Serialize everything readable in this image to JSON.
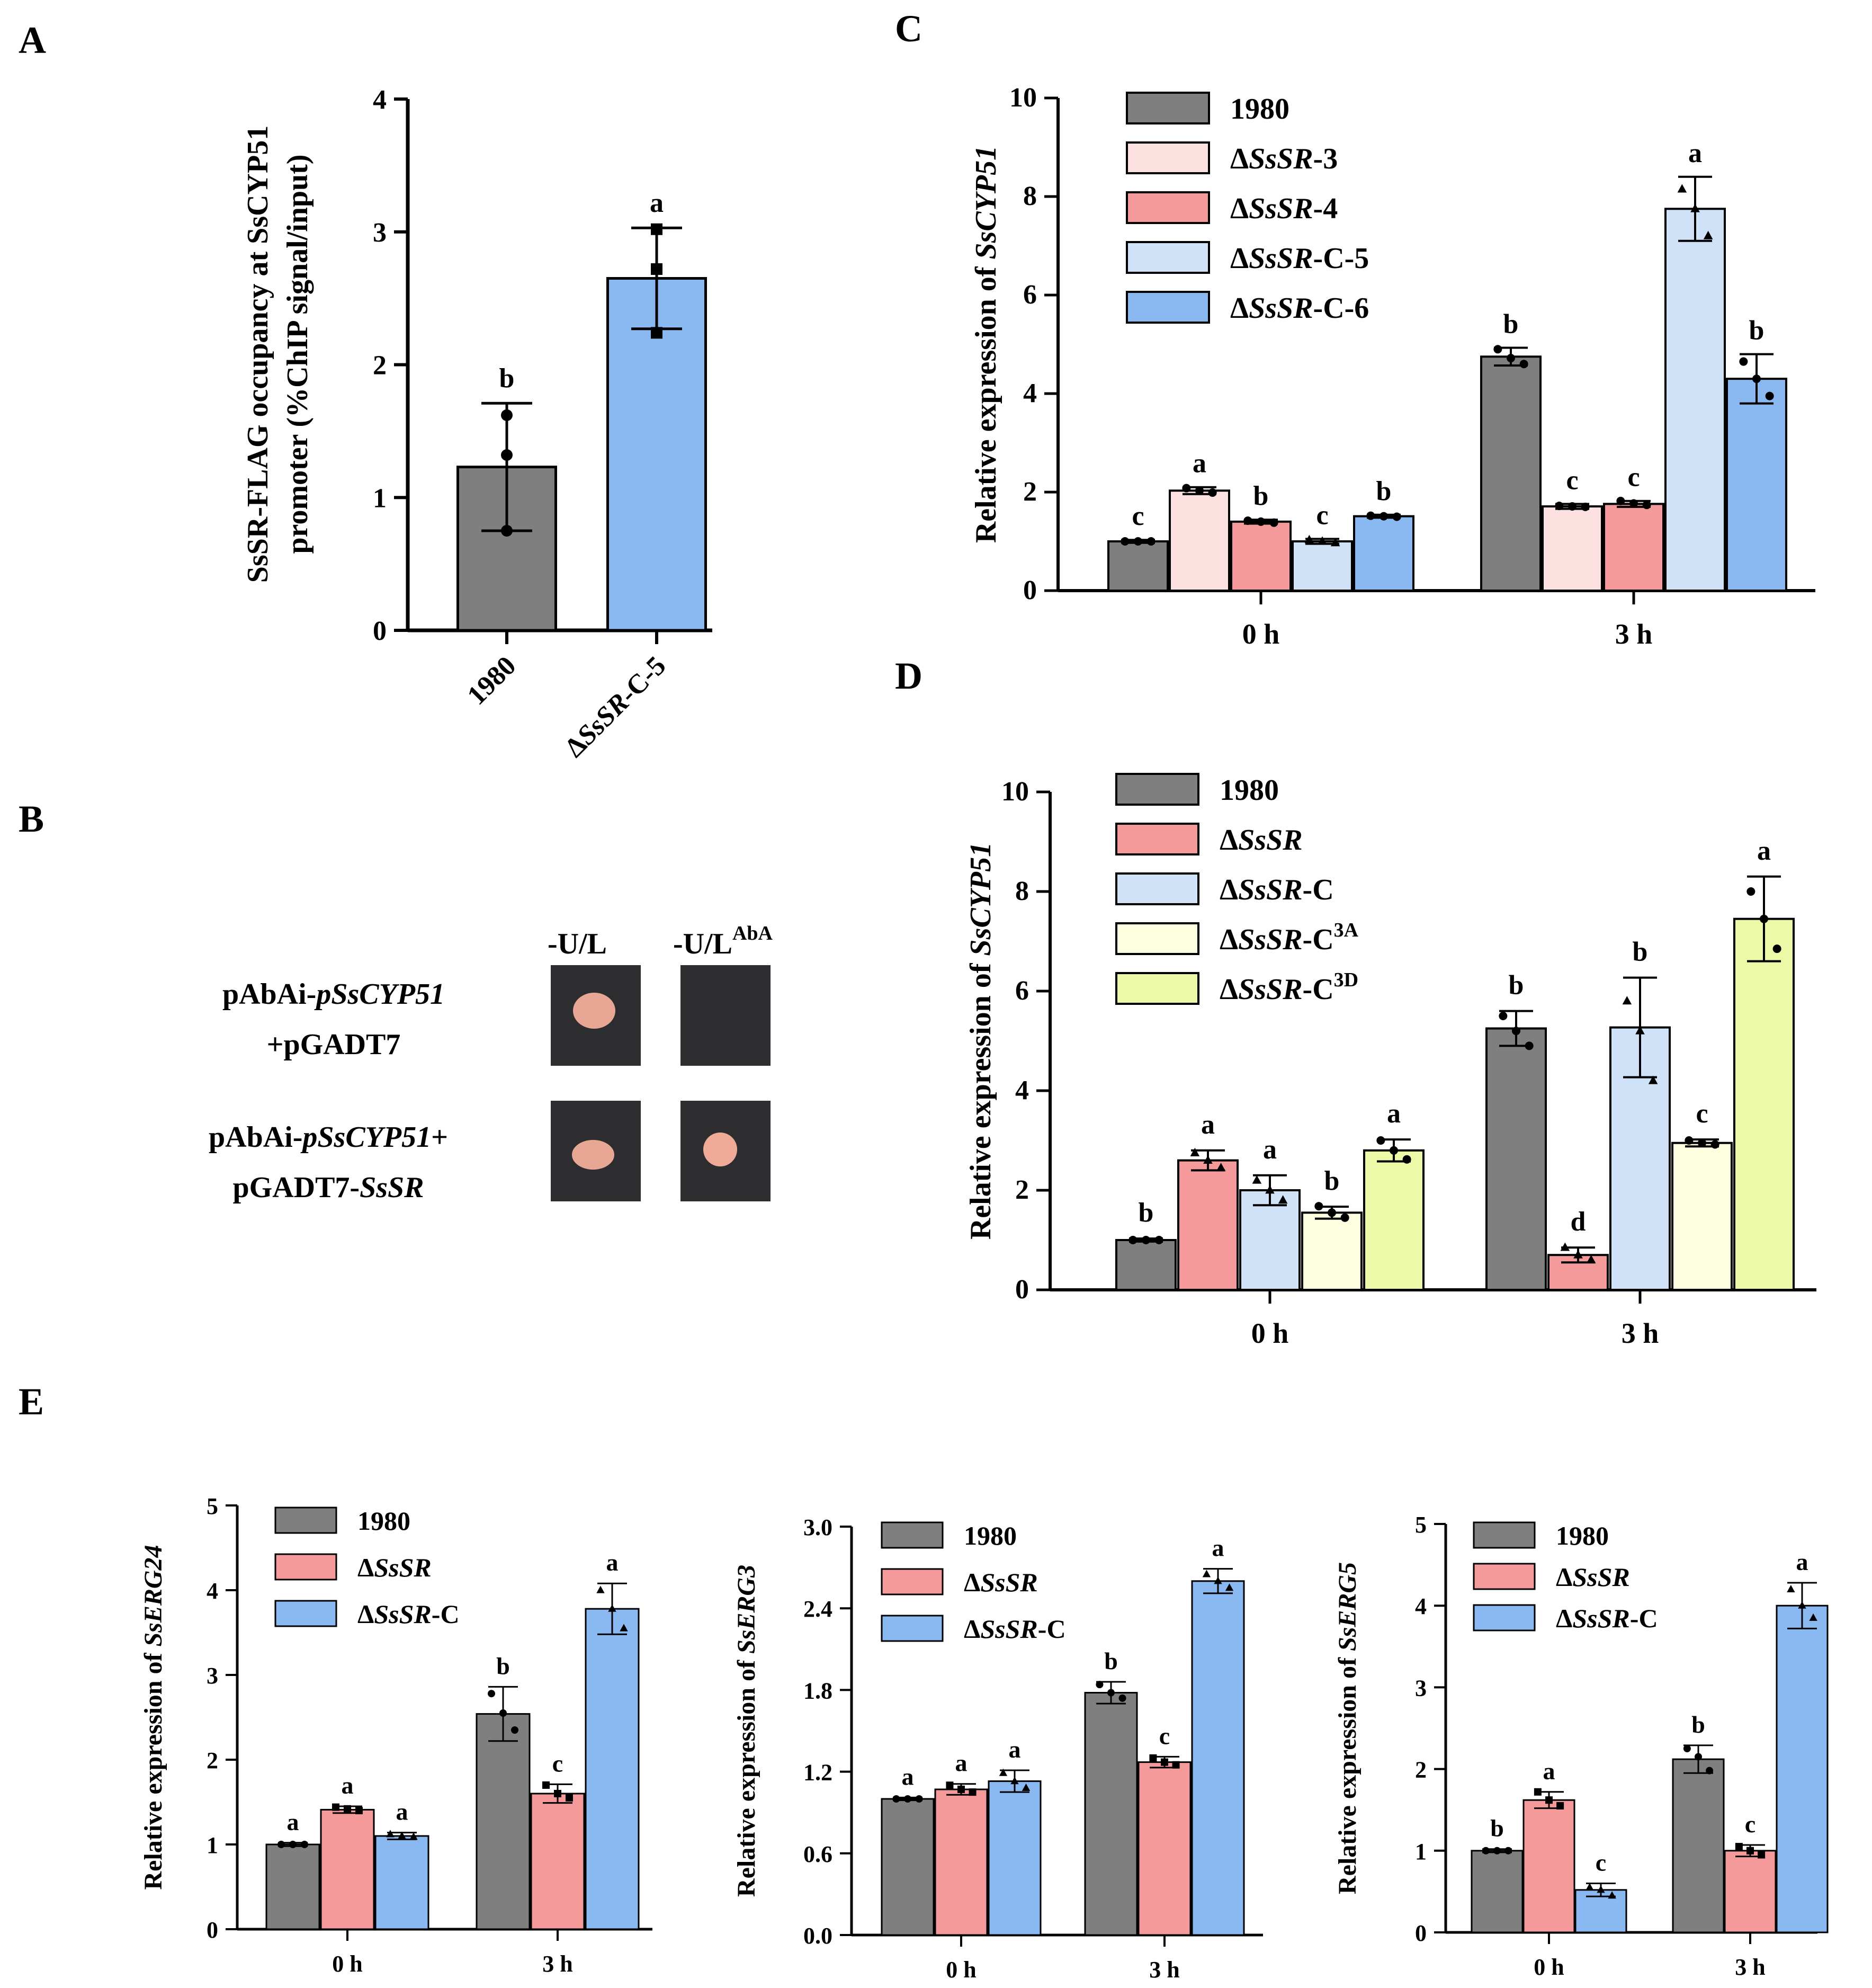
{
  "panels": {
    "A": "A",
    "B": "B",
    "C": "C",
    "D": "D",
    "E": "E"
  },
  "colors": {
    "c1980": "#7f7f7f",
    "cSR3": "#fde0e0",
    "cSR4": "#f49a9a",
    "cC5": "#cfe2f7",
    "cC6": "#8ab9f1",
    "cC3A": "#fdfde0",
    "cC3D": "#ecf9a6",
    "cSR": "#f49a9a",
    "cC": "#8ab9f1"
  },
  "panel_b": {
    "col_headers": [
      "-U/L",
      "-U/L",
      "AbA"
    ],
    "rows": [
      {
        "line1_prefix": "pAbAi-",
        "line1_italic": "pSsCYP51",
        "line1_suffix": "",
        "line2_prefix": "+pGADT7",
        "line2_italic": ""
      },
      {
        "line1_prefix": "pAbAi-",
        "line1_italic": "pSsCYP51",
        "line1_suffix": "+",
        "line2_prefix": "pGADT7-",
        "line2_italic": "SsSR"
      }
    ],
    "growth": [
      [
        true,
        false
      ],
      [
        true,
        true
      ]
    ]
  },
  "chart_data": [
    {
      "id": "A",
      "type": "bar",
      "ylabel_lines": [
        "SsSR-FLAG occupancy at SsCYP51",
        "promoter (%ChIP signal/input)"
      ],
      "categories": [
        "1980",
        "ΔSsSR-C-5"
      ],
      "values": [
        1.23,
        2.65
      ],
      "errors": [
        0.48,
        0.38
      ],
      "points": [
        [
          1.62,
          1.32,
          0.75
        ],
        [
          3.02,
          2.72,
          2.24
        ]
      ],
      "significance": [
        "b",
        "a"
      ],
      "bar_colors": [
        "#7f7f7f",
        "#8ab9f1"
      ],
      "ylim": [
        0,
        4
      ],
      "yticks": [
        0,
        1,
        2,
        3,
        4
      ]
    },
    {
      "id": "C",
      "type": "bar",
      "ylabel": "Relative expression of SsCYP51",
      "categories": [
        "0 h",
        "3 h"
      ],
      "series": [
        {
          "name": "1980",
          "color": "#7f7f7f",
          "values": [
            1.0,
            4.75
          ],
          "errors": [
            0.03,
            0.18
          ],
          "points": [
            [
              1.0,
              1.0,
              1.0
            ],
            [
              4.9,
              4.72,
              4.6
            ]
          ],
          "significance": [
            "c",
            "b"
          ]
        },
        {
          "name": "ΔSsSR-3",
          "color": "#fde0e0",
          "values": [
            2.03,
            1.71
          ],
          "errors": [
            0.07,
            0.05
          ],
          "points": [
            [
              2.08,
              2.03,
              1.99
            ],
            [
              1.72,
              1.71,
              1.7
            ]
          ],
          "significance": [
            "a",
            "c"
          ]
        },
        {
          "name": "ΔSsSR-4",
          "color": "#f49a9a",
          "values": [
            1.4,
            1.76
          ],
          "errors": [
            0.04,
            0.06
          ],
          "points": [
            [
              1.42,
              1.4,
              1.38
            ],
            [
              1.82,
              1.77,
              1.74
            ]
          ],
          "significance": [
            "b",
            "c"
          ]
        },
        {
          "name": "ΔSsSR-C-5",
          "color": "#cfe2f7",
          "values": [
            1.0,
            7.75
          ],
          "errors": [
            0.05,
            0.65
          ],
          "points": [
            [
              1.03,
              1.0,
              0.97
            ],
            [
              8.15,
              7.75,
              7.2
            ]
          ],
          "significance": [
            "c",
            "a"
          ]
        },
        {
          "name": "ΔSsSR-C-6",
          "color": "#8ab9f1",
          "values": [
            1.51,
            4.3
          ],
          "errors": [
            0.03,
            0.5
          ],
          "points": [
            [
              1.52,
              1.51,
              1.5
            ],
            [
              4.65,
              4.3,
              3.95
            ]
          ],
          "significance": [
            "b",
            "b"
          ]
        }
      ],
      "ylim": [
        0,
        10
      ],
      "yticks": [
        0,
        2,
        4,
        6,
        8,
        10
      ]
    },
    {
      "id": "D",
      "type": "bar",
      "ylabel": "Relative expression of SsCYP51",
      "categories": [
        "0 h",
        "3 h"
      ],
      "series": [
        {
          "name": "1980",
          "color": "#7f7f7f",
          "values": [
            1.0,
            5.25
          ],
          "errors": [
            0.03,
            0.35
          ],
          "points": [
            [
              1.0,
              1.0,
              1.0
            ],
            [
              5.5,
              5.2,
              4.9
            ]
          ],
          "significance": [
            "b",
            "b"
          ]
        },
        {
          "name": "ΔSsSR",
          "color": "#f49a9a",
          "values": [
            2.6,
            0.7
          ],
          "errors": [
            0.2,
            0.15
          ],
          "points": [
            [
              2.75,
              2.6,
              2.45
            ],
            [
              0.85,
              0.7,
              0.6
            ]
          ],
          "significance": [
            "a",
            "d"
          ]
        },
        {
          "name": "ΔSsSR-C",
          "color": "#cfe2f7",
          "values": [
            2.0,
            5.27
          ],
          "errors": [
            0.3,
            1.0
          ],
          "points": [
            [
              2.2,
              2.0,
              1.8
            ],
            [
              5.8,
              5.2,
              4.2
            ]
          ],
          "significance": [
            "a",
            "b"
          ]
        },
        {
          "name": "ΔSsSR-C3A",
          "color": "#fdfde0",
          "values": [
            1.55,
            2.95
          ],
          "errors": [
            0.12,
            0.07
          ],
          "points": [
            [
              1.68,
              1.55,
              1.45
            ],
            [
              3.0,
              2.95,
              2.92
            ]
          ],
          "significance": [
            "b",
            "c"
          ]
        },
        {
          "name": "ΔSsSR-C3D",
          "color": "#ecf9a6",
          "values": [
            2.8,
            7.45
          ],
          "errors": [
            0.22,
            0.85
          ],
          "points": [
            [
              3.0,
              2.8,
              2.62
            ],
            [
              8.0,
              7.45,
              6.85
            ]
          ],
          "significance": [
            "a",
            "a"
          ]
        }
      ],
      "ylim": [
        0,
        10
      ],
      "yticks": [
        0,
        2,
        4,
        6,
        8,
        10
      ]
    },
    {
      "id": "E1",
      "type": "bar",
      "ylabel": "Relative expression of SsERG24",
      "categories": [
        "0 h",
        "3 h"
      ],
      "series": [
        {
          "name": "1980",
          "color": "#7f7f7f",
          "values": [
            1.0,
            2.54
          ],
          "errors": [
            0.02,
            0.32
          ],
          "points": [
            [
              1.0,
              1.0,
              1.0
            ],
            [
              2.78,
              2.55,
              2.35
            ]
          ],
          "significance": [
            "a",
            "b"
          ]
        },
        {
          "name": "ΔSsSR",
          "color": "#f49a9a",
          "values": [
            1.41,
            1.6
          ],
          "errors": [
            0.04,
            0.11
          ],
          "points": [
            [
              1.44,
              1.42,
              1.4
            ],
            [
              1.7,
              1.6,
              1.55
            ]
          ],
          "significance": [
            "a",
            "c"
          ]
        },
        {
          "name": "ΔSsSR-C",
          "color": "#8ab9f1",
          "values": [
            1.1,
            3.78
          ],
          "errors": [
            0.04,
            0.3
          ],
          "points": [
            [
              1.12,
              1.1,
              1.09
            ],
            [
              4.0,
              3.78,
              3.55
            ]
          ],
          "significance": [
            "a",
            "a"
          ]
        }
      ],
      "ylim": [
        0,
        5
      ],
      "yticks": [
        0,
        1,
        2,
        3,
        4,
        5
      ]
    },
    {
      "id": "E2",
      "type": "bar",
      "ylabel": "Relative expression of SsERG3",
      "categories": [
        "0 h",
        "3 h"
      ],
      "series": [
        {
          "name": "1980",
          "color": "#7f7f7f",
          "values": [
            1.0,
            1.78
          ],
          "errors": [
            0.01,
            0.08
          ],
          "points": [
            [
              1.0,
              1.0,
              1.0
            ],
            [
              1.84,
              1.78,
              1.74
            ]
          ],
          "significance": [
            "a",
            "b"
          ]
        },
        {
          "name": "ΔSsSR",
          "color": "#f49a9a",
          "values": [
            1.07,
            1.27
          ],
          "errors": [
            0.04,
            0.04
          ],
          "points": [
            [
              1.1,
              1.07,
              1.05
            ],
            [
              1.3,
              1.27,
              1.25
            ]
          ],
          "significance": [
            "a",
            "c"
          ]
        },
        {
          "name": "ΔSsSR-C",
          "color": "#8ab9f1",
          "values": [
            1.13,
            2.6
          ],
          "errors": [
            0.08,
            0.09
          ],
          "points": [
            [
              1.19,
              1.13,
              1.08
            ],
            [
              2.65,
              2.6,
              2.55
            ]
          ],
          "significance": [
            "a",
            "a"
          ]
        }
      ],
      "ylim": [
        0,
        3
      ],
      "yticks": [
        0.0,
        0.6,
        1.2,
        1.8,
        2.4,
        3.0
      ],
      "ytick_labels": [
        "0.0",
        "0.6",
        "1.2",
        "1.8",
        "2.4",
        "3.0"
      ]
    },
    {
      "id": "E3",
      "type": "bar",
      "ylabel": "Relative expression of SsERG5",
      "categories": [
        "0 h",
        "3 h"
      ],
      "series": [
        {
          "name": "1980",
          "color": "#7f7f7f",
          "values": [
            1.0,
            2.12
          ],
          "errors": [
            0.02,
            0.17
          ],
          "points": [
            [
              1.0,
              1.0,
              1.0
            ],
            [
              2.25,
              2.15,
              1.98
            ]
          ],
          "significance": [
            "b",
            "b"
          ]
        },
        {
          "name": "ΔSsSR",
          "color": "#f49a9a",
          "values": [
            1.62,
            1.0
          ],
          "errors": [
            0.1,
            0.07
          ],
          "points": [
            [
              1.72,
              1.62,
              1.55
            ],
            [
              1.05,
              1.0,
              0.95
            ]
          ],
          "significance": [
            "a",
            "c"
          ]
        },
        {
          "name": "ΔSsSR-C",
          "color": "#8ab9f1",
          "values": [
            0.52,
            4.0
          ],
          "errors": [
            0.08,
            0.28
          ],
          "points": [
            [
              0.55,
              0.52,
              0.45
            ],
            [
              4.2,
              4.0,
              3.85
            ]
          ],
          "significance": [
            "c",
            "a"
          ]
        }
      ],
      "ylim": [
        0,
        5
      ],
      "yticks": [
        0,
        1,
        2,
        3,
        4,
        5
      ]
    }
  ]
}
